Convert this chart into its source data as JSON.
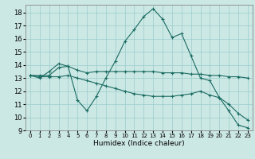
{
  "title": "",
  "xlabel": "Humidex (Indice chaleur)",
  "bg_color": "#cce8e4",
  "grid_color": "#99cccc",
  "line_color": "#1a6b62",
  "xlim": [
    -0.5,
    23.5
  ],
  "ylim": [
    9,
    18.6
  ],
  "yticks": [
    9,
    10,
    11,
    12,
    13,
    14,
    15,
    16,
    17,
    18
  ],
  "xticks": [
    0,
    1,
    2,
    3,
    4,
    5,
    6,
    7,
    8,
    9,
    10,
    11,
    12,
    13,
    14,
    15,
    16,
    17,
    18,
    19,
    20,
    21,
    22,
    23
  ],
  "series": [
    [
      13.2,
      13.0,
      13.5,
      14.1,
      13.9,
      11.3,
      10.5,
      11.6,
      13.0,
      14.3,
      15.8,
      16.7,
      17.7,
      18.3,
      17.5,
      16.1,
      16.4,
      14.7,
      13.0,
      12.8,
      11.5,
      10.5,
      9.4,
      9.2
    ],
    [
      13.2,
      13.2,
      13.2,
      13.8,
      13.9,
      13.6,
      13.4,
      13.5,
      13.5,
      13.5,
      13.5,
      13.5,
      13.5,
      13.5,
      13.4,
      13.4,
      13.4,
      13.3,
      13.3,
      13.2,
      13.2,
      13.1,
      13.1,
      13.0
    ],
    [
      13.2,
      13.1,
      13.1,
      13.1,
      13.2,
      13.0,
      12.8,
      12.6,
      12.4,
      12.2,
      12.0,
      11.8,
      11.7,
      11.6,
      11.6,
      11.6,
      11.7,
      11.8,
      12.0,
      11.7,
      11.5,
      11.0,
      10.3,
      9.8
    ]
  ]
}
